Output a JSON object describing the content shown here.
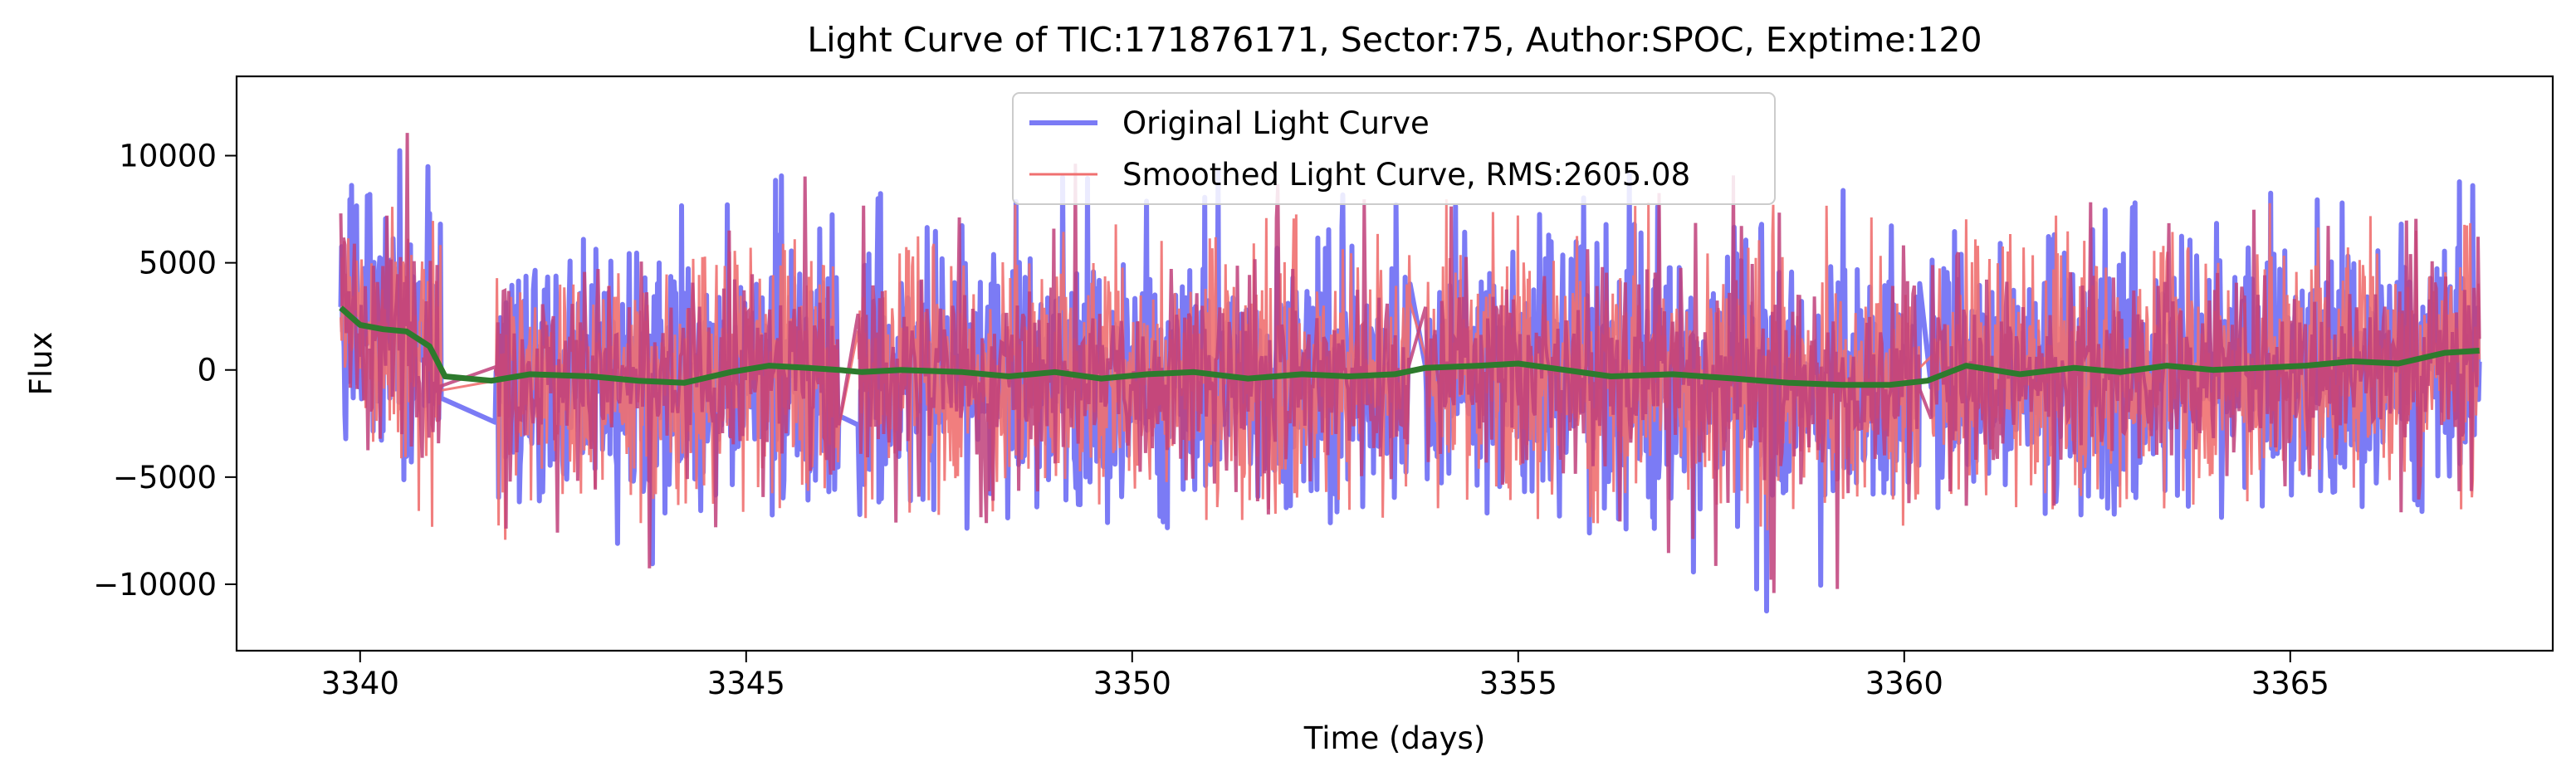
{
  "chart_data": {
    "type": "line",
    "title": "Light Curve of TIC:171876171, Sector:75, Author:SPOC, Exptime:120",
    "xlabel": "Time (days)",
    "ylabel": "Flux",
    "xlim": [
      3338.4,
      3368.4
    ],
    "ylim": [
      -13100,
      13700
    ],
    "x_ticks": [
      3340,
      3345,
      3350,
      3355,
      3360,
      3365
    ],
    "y_ticks": [
      -10000,
      -5000,
      0,
      5000,
      10000
    ],
    "x_tick_labels": [
      "3340",
      "3345",
      "3350",
      "3355",
      "3360",
      "3365"
    ],
    "y_tick_labels": [
      "−10000",
      "−5000",
      "0",
      "5000",
      "10000"
    ],
    "grid": false,
    "legend_position": "upper center",
    "data_segments": [
      [
        3339.75,
        3341.05
      ],
      [
        3341.75,
        3346.2
      ],
      [
        3346.45,
        3353.6
      ],
      [
        3353.8,
        3360.2
      ],
      [
        3360.35,
        3367.45
      ]
    ],
    "series": [
      {
        "name": "Original Light Curve",
        "color": "#7b7bf5",
        "envelope": [
          {
            "x": 3339.8,
            "low": -4500,
            "high": 8500
          },
          {
            "x": 3340.2,
            "low": -3500,
            "high": 9000
          },
          {
            "x": 3340.5,
            "low": -4500,
            "high": 12500
          },
          {
            "x": 3341.0,
            "low": -9500,
            "high": 9800
          },
          {
            "x": 3341.9,
            "low": -9000,
            "high": 3800
          },
          {
            "x": 3343.5,
            "low": -9800,
            "high": 7500
          },
          {
            "x": 3345.5,
            "low": -6500,
            "high": 11300
          },
          {
            "x": 3346.2,
            "low": -5500,
            "high": 7300
          },
          {
            "x": 3346.5,
            "low": -7500,
            "high": 8500
          },
          {
            "x": 3350.0,
            "low": -7500,
            "high": 10200
          },
          {
            "x": 3353.5,
            "low": -7000,
            "high": 8000
          },
          {
            "x": 3353.9,
            "low": -7000,
            "high": 8500
          },
          {
            "x": 3356.7,
            "low": -8000,
            "high": 9400
          },
          {
            "x": 3358.1,
            "low": -11800,
            "high": 9200
          },
          {
            "x": 3360.1,
            "low": -9000,
            "high": 8000
          },
          {
            "x": 3360.4,
            "low": -6500,
            "high": 7300
          },
          {
            "x": 3364.0,
            "low": -7000,
            "high": 8500
          },
          {
            "x": 3367.4,
            "low": -6500,
            "high": 8800
          }
        ]
      },
      {
        "name": "Smoothed Light Curve, RMS:2605.08",
        "color": "#f07070",
        "envelope": [
          {
            "x": 3339.8,
            "low": -7600,
            "high": 7500
          },
          {
            "x": 3341.0,
            "low": -9500,
            "high": 9000
          },
          {
            "x": 3341.9,
            "low": -8500,
            "high": 3500
          },
          {
            "x": 3346.2,
            "low": -6000,
            "high": 6500
          },
          {
            "x": 3346.5,
            "low": -7000,
            "high": 8000
          },
          {
            "x": 3353.5,
            "low": -7000,
            "high": 7500
          },
          {
            "x": 3353.9,
            "low": -7000,
            "high": 8000
          },
          {
            "x": 3360.1,
            "low": -8500,
            "high": 8000
          },
          {
            "x": 3360.4,
            "low": -6500,
            "high": 7000
          },
          {
            "x": 3367.4,
            "low": -6500,
            "high": 8500
          }
        ]
      },
      {
        "color": "#2d7a2d",
        "x": [
          3339.75,
          3340.0,
          3340.3,
          3340.6,
          3340.9,
          3341.1,
          3341.7,
          3342.2,
          3343.0,
          3343.6,
          3344.2,
          3344.8,
          3345.3,
          3345.8,
          3346.2,
          3346.5,
          3347.0,
          3347.8,
          3348.4,
          3349.0,
          3349.6,
          3350.2,
          3350.8,
          3351.5,
          3352.2,
          3352.8,
          3353.4,
          3353.8,
          3354.5,
          3355.0,
          3355.6,
          3356.2,
          3357.0,
          3357.8,
          3358.5,
          3359.2,
          3359.8,
          3360.3,
          3360.8,
          3361.5,
          3362.2,
          3362.8,
          3363.4,
          3364.0,
          3364.6,
          3365.2,
          3365.8,
          3366.4,
          3367.0,
          3367.45
        ],
        "y": [
          2900,
          2100,
          1900,
          1800,
          1100,
          -300,
          -500,
          -200,
          -300,
          -500,
          -600,
          -100,
          200,
          100,
          0,
          -100,
          0,
          -100,
          -300,
          -100,
          -400,
          -200,
          -100,
          -400,
          -200,
          -300,
          -200,
          100,
          200,
          300,
          0,
          -300,
          -200,
          -400,
          -600,
          -700,
          -700,
          -500,
          200,
          -200,
          100,
          -100,
          200,
          0,
          100,
          200,
          400,
          300,
          800,
          900
        ]
      }
    ]
  }
}
